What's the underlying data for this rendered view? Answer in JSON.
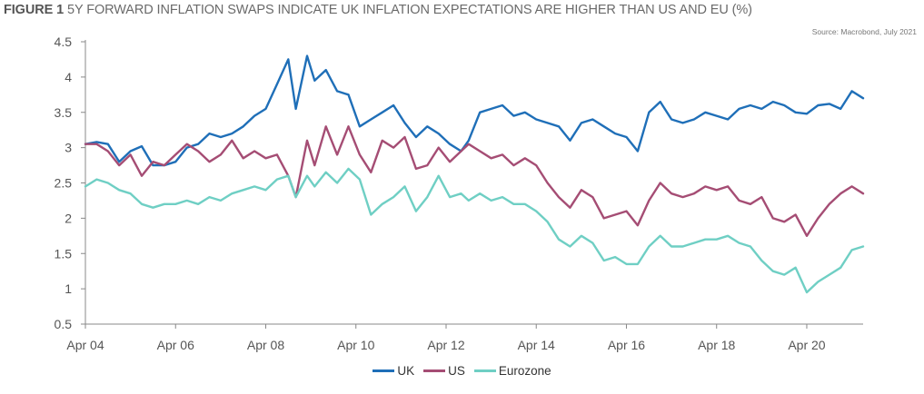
{
  "title": {
    "prefix": "FIGURE 1",
    "text": "5Y FORWARD INFLATION SWAPS INDICATE UK INFLATION EXPECTATIONS ARE HIGHER THAN US AND EU (%)"
  },
  "source": "Source: Macrobond, July 2021",
  "colors": {
    "UK": "#1f6fb8",
    "US": "#a54d74",
    "Eurozone": "#6fcfc4",
    "axis": "#888888",
    "text": "#555555"
  },
  "chart_data": {
    "type": "line",
    "x_ticks": [
      "Apr 04",
      "Apr 06",
      "Apr 08",
      "Apr 10",
      "Apr 12",
      "Apr 14",
      "Apr 16",
      "Apr 18",
      "Apr 20"
    ],
    "y_ticks": [
      "4.5",
      "4",
      "3.5",
      "3",
      "2.5",
      "2",
      "1.5",
      "1",
      "0.5"
    ],
    "ylim": [
      0.5,
      4.5
    ],
    "xlim": [
      "2004-04",
      "2021-07"
    ],
    "grid": false,
    "legend_position": "bottom",
    "series": [
      {
        "name": "UK",
        "points": [
          [
            "2004-04",
            3.05
          ],
          [
            "2004-07",
            3.08
          ],
          [
            "2004-10",
            3.05
          ],
          [
            "2005-01",
            2.8
          ],
          [
            "2005-04",
            2.95
          ],
          [
            "2005-07",
            3.02
          ],
          [
            "2005-10",
            2.75
          ],
          [
            "2006-01",
            2.75
          ],
          [
            "2006-04",
            2.8
          ],
          [
            "2006-07",
            3.0
          ],
          [
            "2006-10",
            3.05
          ],
          [
            "2007-01",
            3.2
          ],
          [
            "2007-04",
            3.15
          ],
          [
            "2007-07",
            3.2
          ],
          [
            "2007-10",
            3.3
          ],
          [
            "2008-01",
            3.45
          ],
          [
            "2008-04",
            3.55
          ],
          [
            "2008-07",
            3.9
          ],
          [
            "2008-10",
            4.25
          ],
          [
            "2008-12",
            3.55
          ],
          [
            "2009-03",
            4.3
          ],
          [
            "2009-05",
            3.95
          ],
          [
            "2009-08",
            4.1
          ],
          [
            "2009-11",
            3.8
          ],
          [
            "2010-02",
            3.75
          ],
          [
            "2010-05",
            3.3
          ],
          [
            "2010-08",
            3.4
          ],
          [
            "2010-11",
            3.5
          ],
          [
            "2011-02",
            3.6
          ],
          [
            "2011-05",
            3.35
          ],
          [
            "2011-08",
            3.15
          ],
          [
            "2011-11",
            3.3
          ],
          [
            "2012-02",
            3.2
          ],
          [
            "2012-05",
            3.05
          ],
          [
            "2012-08",
            2.95
          ],
          [
            "2012-10",
            3.1
          ],
          [
            "2013-01",
            3.5
          ],
          [
            "2013-04",
            3.55
          ],
          [
            "2013-07",
            3.6
          ],
          [
            "2013-10",
            3.45
          ],
          [
            "2014-01",
            3.5
          ],
          [
            "2014-04",
            3.4
          ],
          [
            "2014-07",
            3.35
          ],
          [
            "2014-10",
            3.3
          ],
          [
            "2015-01",
            3.1
          ],
          [
            "2015-04",
            3.35
          ],
          [
            "2015-07",
            3.4
          ],
          [
            "2015-10",
            3.3
          ],
          [
            "2016-01",
            3.2
          ],
          [
            "2016-04",
            3.15
          ],
          [
            "2016-07",
            2.95
          ],
          [
            "2016-10",
            3.5
          ],
          [
            "2017-01",
            3.65
          ],
          [
            "2017-04",
            3.4
          ],
          [
            "2017-07",
            3.35
          ],
          [
            "2017-10",
            3.4
          ],
          [
            "2018-01",
            3.5
          ],
          [
            "2018-04",
            3.45
          ],
          [
            "2018-07",
            3.4
          ],
          [
            "2018-10",
            3.55
          ],
          [
            "2019-01",
            3.6
          ],
          [
            "2019-04",
            3.55
          ],
          [
            "2019-07",
            3.65
          ],
          [
            "2019-10",
            3.6
          ],
          [
            "2020-01",
            3.5
          ],
          [
            "2020-04",
            3.48
          ],
          [
            "2020-07",
            3.6
          ],
          [
            "2020-10",
            3.62
          ],
          [
            "2021-01",
            3.55
          ],
          [
            "2021-04",
            3.8
          ],
          [
            "2021-07",
            3.7
          ]
        ]
      },
      {
        "name": "US",
        "points": [
          [
            "2004-04",
            3.05
          ],
          [
            "2004-07",
            3.05
          ],
          [
            "2004-10",
            2.95
          ],
          [
            "2005-01",
            2.75
          ],
          [
            "2005-04",
            2.9
          ],
          [
            "2005-07",
            2.6
          ],
          [
            "2005-10",
            2.8
          ],
          [
            "2006-01",
            2.75
          ],
          [
            "2006-04",
            2.9
          ],
          [
            "2006-07",
            3.05
          ],
          [
            "2006-10",
            2.95
          ],
          [
            "2007-01",
            2.8
          ],
          [
            "2007-04",
            2.9
          ],
          [
            "2007-07",
            3.1
          ],
          [
            "2007-10",
            2.85
          ],
          [
            "2008-01",
            2.95
          ],
          [
            "2008-04",
            2.85
          ],
          [
            "2008-07",
            2.9
          ],
          [
            "2008-10",
            2.6
          ],
          [
            "2008-12",
            2.3
          ],
          [
            "2009-03",
            3.1
          ],
          [
            "2009-05",
            2.75
          ],
          [
            "2009-08",
            3.3
          ],
          [
            "2009-11",
            2.9
          ],
          [
            "2010-02",
            3.3
          ],
          [
            "2010-05",
            2.9
          ],
          [
            "2010-08",
            2.65
          ],
          [
            "2010-11",
            3.1
          ],
          [
            "2011-02",
            3.0
          ],
          [
            "2011-05",
            3.15
          ],
          [
            "2011-08",
            2.7
          ],
          [
            "2011-11",
            2.75
          ],
          [
            "2012-02",
            3.0
          ],
          [
            "2012-05",
            2.8
          ],
          [
            "2012-08",
            2.95
          ],
          [
            "2012-10",
            3.05
          ],
          [
            "2013-01",
            2.95
          ],
          [
            "2013-04",
            2.85
          ],
          [
            "2013-07",
            2.9
          ],
          [
            "2013-10",
            2.75
          ],
          [
            "2014-01",
            2.85
          ],
          [
            "2014-04",
            2.75
          ],
          [
            "2014-07",
            2.5
          ],
          [
            "2014-10",
            2.3
          ],
          [
            "2015-01",
            2.15
          ],
          [
            "2015-04",
            2.4
          ],
          [
            "2015-07",
            2.3
          ],
          [
            "2015-10",
            2.0
          ],
          [
            "2016-01",
            2.05
          ],
          [
            "2016-04",
            2.1
          ],
          [
            "2016-07",
            1.9
          ],
          [
            "2016-10",
            2.25
          ],
          [
            "2017-01",
            2.5
          ],
          [
            "2017-04",
            2.35
          ],
          [
            "2017-07",
            2.3
          ],
          [
            "2017-10",
            2.35
          ],
          [
            "2018-01",
            2.45
          ],
          [
            "2018-04",
            2.4
          ],
          [
            "2018-07",
            2.45
          ],
          [
            "2018-10",
            2.25
          ],
          [
            "2019-01",
            2.2
          ],
          [
            "2019-04",
            2.3
          ],
          [
            "2019-07",
            2.0
          ],
          [
            "2019-10",
            1.95
          ],
          [
            "2020-01",
            2.05
          ],
          [
            "2020-04",
            1.75
          ],
          [
            "2020-07",
            2.0
          ],
          [
            "2020-10",
            2.2
          ],
          [
            "2021-01",
            2.35
          ],
          [
            "2021-04",
            2.45
          ],
          [
            "2021-07",
            2.35
          ]
        ]
      },
      {
        "name": "Eurozone",
        "points": [
          [
            "2004-04",
            2.45
          ],
          [
            "2004-07",
            2.55
          ],
          [
            "2004-10",
            2.5
          ],
          [
            "2005-01",
            2.4
          ],
          [
            "2005-04",
            2.35
          ],
          [
            "2005-07",
            2.2
          ],
          [
            "2005-10",
            2.15
          ],
          [
            "2006-01",
            2.2
          ],
          [
            "2006-04",
            2.2
          ],
          [
            "2006-07",
            2.25
          ],
          [
            "2006-10",
            2.2
          ],
          [
            "2007-01",
            2.3
          ],
          [
            "2007-04",
            2.25
          ],
          [
            "2007-07",
            2.35
          ],
          [
            "2007-10",
            2.4
          ],
          [
            "2008-01",
            2.45
          ],
          [
            "2008-04",
            2.4
          ],
          [
            "2008-07",
            2.55
          ],
          [
            "2008-10",
            2.6
          ],
          [
            "2008-12",
            2.3
          ],
          [
            "2009-03",
            2.6
          ],
          [
            "2009-05",
            2.45
          ],
          [
            "2009-08",
            2.65
          ],
          [
            "2009-11",
            2.5
          ],
          [
            "2010-02",
            2.7
          ],
          [
            "2010-05",
            2.55
          ],
          [
            "2010-08",
            2.05
          ],
          [
            "2010-11",
            2.2
          ],
          [
            "2011-02",
            2.3
          ],
          [
            "2011-05",
            2.45
          ],
          [
            "2011-08",
            2.1
          ],
          [
            "2011-11",
            2.3
          ],
          [
            "2012-02",
            2.6
          ],
          [
            "2012-05",
            2.3
          ],
          [
            "2012-08",
            2.35
          ],
          [
            "2012-10",
            2.25
          ],
          [
            "2013-01",
            2.35
          ],
          [
            "2013-04",
            2.25
          ],
          [
            "2013-07",
            2.3
          ],
          [
            "2013-10",
            2.2
          ],
          [
            "2014-01",
            2.2
          ],
          [
            "2014-04",
            2.1
          ],
          [
            "2014-07",
            1.95
          ],
          [
            "2014-10",
            1.7
          ],
          [
            "2015-01",
            1.6
          ],
          [
            "2015-04",
            1.75
          ],
          [
            "2015-07",
            1.65
          ],
          [
            "2015-10",
            1.4
          ],
          [
            "2016-01",
            1.45
          ],
          [
            "2016-04",
            1.35
          ],
          [
            "2016-07",
            1.35
          ],
          [
            "2016-10",
            1.6
          ],
          [
            "2017-01",
            1.75
          ],
          [
            "2017-04",
            1.6
          ],
          [
            "2017-07",
            1.6
          ],
          [
            "2017-10",
            1.65
          ],
          [
            "2018-01",
            1.7
          ],
          [
            "2018-04",
            1.7
          ],
          [
            "2018-07",
            1.75
          ],
          [
            "2018-10",
            1.65
          ],
          [
            "2019-01",
            1.6
          ],
          [
            "2019-04",
            1.4
          ],
          [
            "2019-07",
            1.25
          ],
          [
            "2019-10",
            1.2
          ],
          [
            "2020-01",
            1.3
          ],
          [
            "2020-04",
            0.95
          ],
          [
            "2020-07",
            1.1
          ],
          [
            "2020-10",
            1.2
          ],
          [
            "2021-01",
            1.3
          ],
          [
            "2021-04",
            1.55
          ],
          [
            "2021-07",
            1.6
          ]
        ]
      }
    ]
  }
}
